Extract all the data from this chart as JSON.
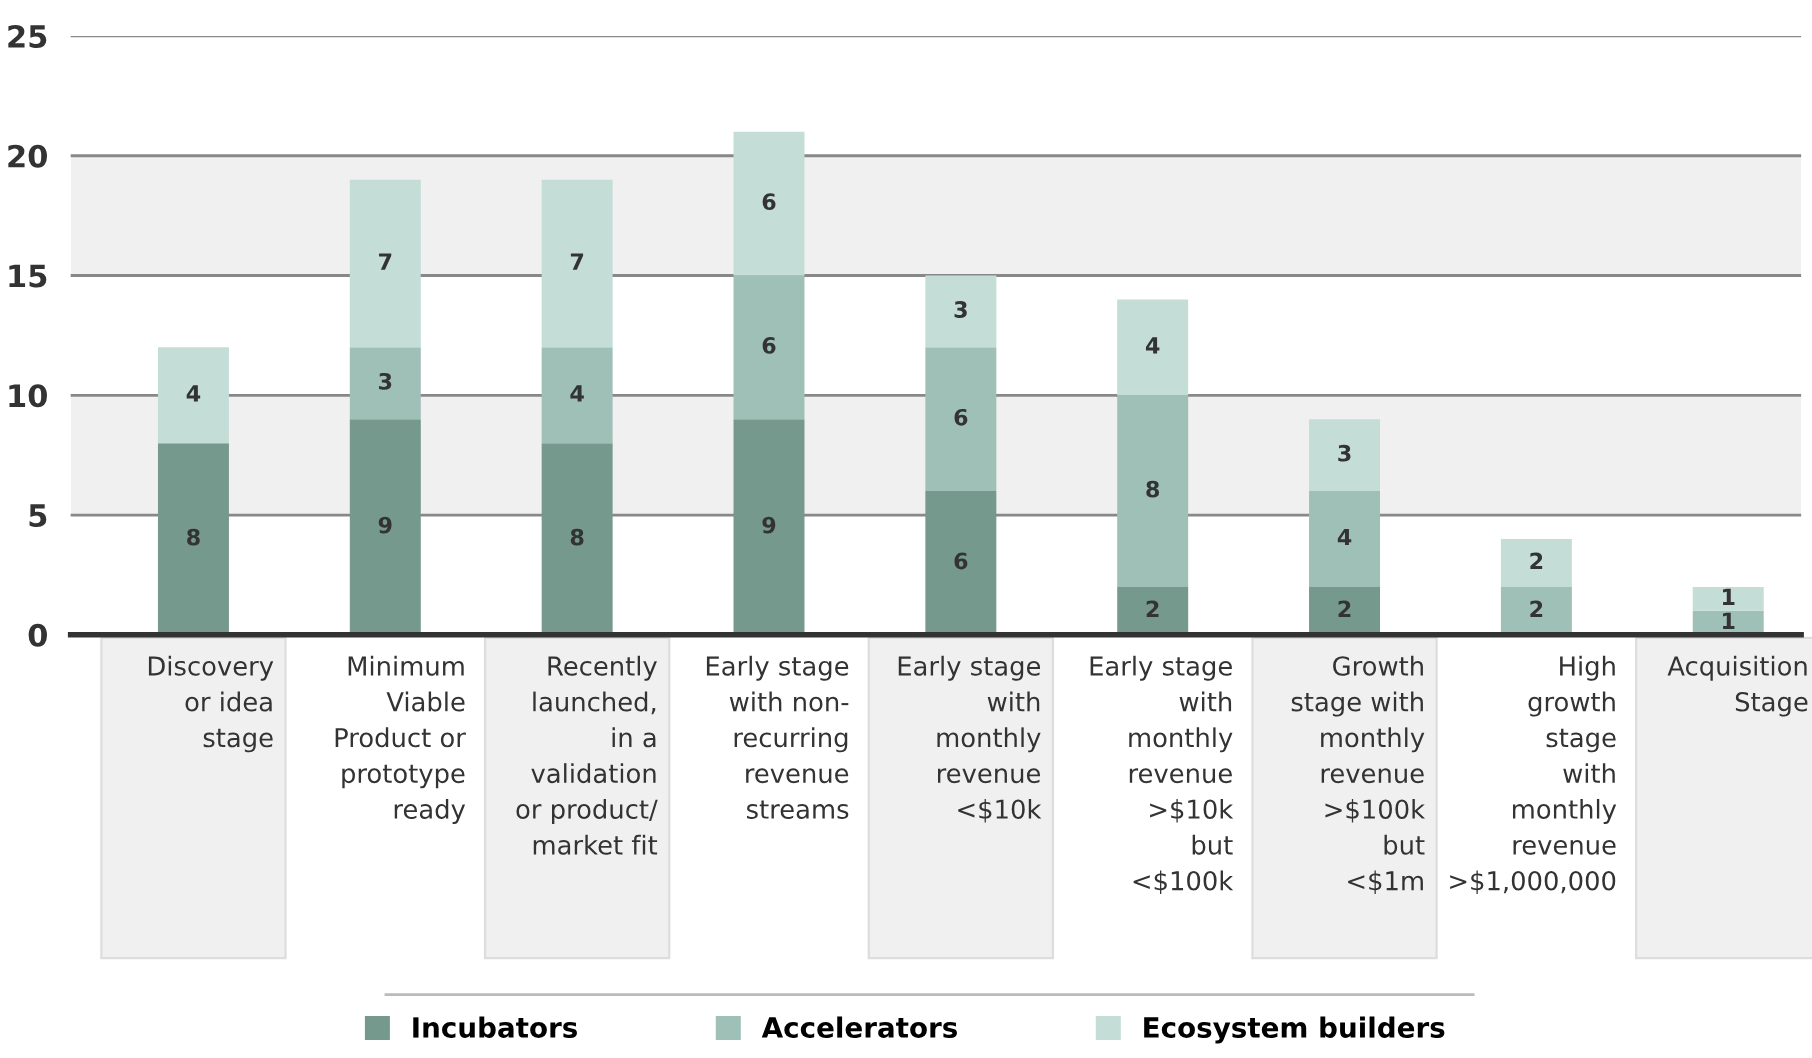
{
  "chart_data": {
    "type": "bar",
    "stacked": true,
    "categories": [
      "Discovery\nor idea\nstage",
      "Minimum\nViable\nProduct or\nprototype\nready",
      "Recently\nlaunched,\nin a\nvalidation\nor product/\nmarket fit",
      "Early stage\nwith non-\nrecurring\nrevenue\nstreams",
      "Early stage\nwith\nmonthly\nrevenue\n<$10k",
      "Early stage\nwith\nmonthly\nrevenue\n>$10k\nbut\n<$100k",
      "Growth\nstage with\nmonthly\nrevenue\n>$100k\nbut\n<$1m",
      "High\ngrowth\nstage\nwith\nmonthly\nrevenue\n>$1,000,000",
      "Acquisition\nStage"
    ],
    "series": [
      {
        "name": "Incubators",
        "color": "#75998c",
        "values": [
          8,
          9,
          8,
          9,
          6,
          2,
          2,
          null,
          null
        ]
      },
      {
        "name": "Accelerators",
        "color": "#9fc0b7",
        "values": [
          null,
          3,
          4,
          6,
          6,
          8,
          4,
          2,
          1
        ]
      },
      {
        "name": "Ecosystem builders",
        "color": "#c4ddd6",
        "values": [
          4,
          7,
          7,
          6,
          3,
          4,
          3,
          2,
          1
        ]
      }
    ],
    "ylim": [
      0,
      25
    ],
    "yticks": [
      0,
      5,
      10,
      15,
      20,
      25
    ],
    "grid": "y",
    "bands": [
      {
        "axis": "y",
        "from": 5,
        "to": 10,
        "color": "#f0f0f0"
      },
      {
        "axis": "y",
        "from": 15,
        "to": 20,
        "color": "#f0f0f0"
      }
    ],
    "data_labels": true,
    "legend": "bottom"
  }
}
